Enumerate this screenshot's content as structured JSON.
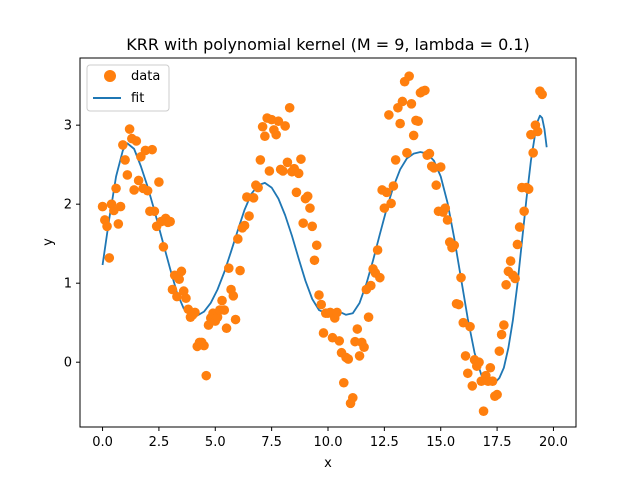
{
  "chart_data": {
    "type": "scatter",
    "title": "KRR with polynomial kernel (M = 9, lambda = 0.1)",
    "xlabel": "x",
    "ylabel": "y",
    "xlim": [
      -1.0,
      21.0
    ],
    "ylim": [
      -0.82,
      3.85
    ],
    "xticks": [
      0.0,
      2.5,
      5.0,
      7.5,
      10.0,
      12.5,
      15.0,
      17.5,
      20.0
    ],
    "xtick_labels": [
      "0.0",
      "2.5",
      "5.0",
      "7.5",
      "10.0",
      "12.5",
      "15.0",
      "17.5",
      "20.0"
    ],
    "yticks": [
      0,
      1,
      2,
      3
    ],
    "ytick_labels": [
      "0",
      "1",
      "2",
      "3"
    ],
    "grid": false,
    "legend": {
      "position": "top-left",
      "entries": [
        "data",
        "fit"
      ]
    },
    "colors": {
      "data": "#ff7f0e",
      "fit": "#1f77b4"
    },
    "series": [
      {
        "name": "data",
        "kind": "scatter",
        "points": [
          [
            0.0,
            1.97
          ],
          [
            0.1,
            1.8
          ],
          [
            0.2,
            1.72
          ],
          [
            0.3,
            1.32
          ],
          [
            0.4,
            2.0
          ],
          [
            0.5,
            1.92
          ],
          [
            0.6,
            2.2
          ],
          [
            0.7,
            1.75
          ],
          [
            0.8,
            1.97
          ],
          [
            0.9,
            2.75
          ],
          [
            1.0,
            2.56
          ],
          [
            1.1,
            2.37
          ],
          [
            1.2,
            2.95
          ],
          [
            1.3,
            2.83
          ],
          [
            1.4,
            2.18
          ],
          [
            1.5,
            2.8
          ],
          [
            1.6,
            2.3
          ],
          [
            1.7,
            2.6
          ],
          [
            1.8,
            2.2
          ],
          [
            1.9,
            2.68
          ],
          [
            2.0,
            2.17
          ],
          [
            2.1,
            1.91
          ],
          [
            2.2,
            2.69
          ],
          [
            2.3,
            1.91
          ],
          [
            2.4,
            1.72
          ],
          [
            2.5,
            2.28
          ],
          [
            2.6,
            1.78
          ],
          [
            2.7,
            1.46
          ],
          [
            2.8,
            1.82
          ],
          [
            2.9,
            1.77
          ],
          [
            3.0,
            1.78
          ],
          [
            3.1,
            0.92
          ],
          [
            3.2,
            1.1
          ],
          [
            3.3,
            0.83
          ],
          [
            3.4,
            1.05
          ],
          [
            3.5,
            1.15
          ],
          [
            3.6,
            0.9
          ],
          [
            3.7,
            0.81
          ],
          [
            3.8,
            0.67
          ],
          [
            3.9,
            0.57
          ],
          [
            4.0,
            0.6
          ],
          [
            4.1,
            0.63
          ],
          [
            4.2,
            0.2
          ],
          [
            4.3,
            0.25
          ],
          [
            4.4,
            0.25
          ],
          [
            4.5,
            0.21
          ],
          [
            4.6,
            -0.17
          ],
          [
            4.7,
            0.47
          ],
          [
            4.8,
            0.56
          ],
          [
            4.9,
            0.62
          ],
          [
            5.0,
            0.52
          ],
          [
            5.1,
            0.57
          ],
          [
            5.2,
            0.66
          ],
          [
            5.3,
            0.78
          ],
          [
            5.4,
            0.66
          ],
          [
            5.5,
            0.43
          ],
          [
            5.6,
            1.19
          ],
          [
            5.7,
            0.92
          ],
          [
            5.8,
            0.84
          ],
          [
            5.9,
            0.54
          ],
          [
            6.0,
            1.56
          ],
          [
            6.1,
            1.16
          ],
          [
            6.2,
            1.7
          ],
          [
            6.3,
            1.73
          ],
          [
            6.4,
            2.09
          ],
          [
            6.5,
            1.85
          ],
          [
            6.7,
            2.08
          ],
          [
            6.8,
            2.24
          ],
          [
            6.9,
            2.21
          ],
          [
            7.0,
            2.56
          ],
          [
            7.1,
            2.98
          ],
          [
            7.2,
            2.86
          ],
          [
            7.3,
            3.09
          ],
          [
            7.4,
            2.42
          ],
          [
            7.5,
            3.07
          ],
          [
            7.6,
            2.94
          ],
          [
            7.7,
            2.88
          ],
          [
            7.8,
            3.05
          ],
          [
            7.9,
            2.44
          ],
          [
            8.0,
            2.42
          ],
          [
            8.1,
            2.99
          ],
          [
            8.2,
            2.53
          ],
          [
            8.3,
            3.22
          ],
          [
            8.4,
            2.41
          ],
          [
            8.5,
            2.45
          ],
          [
            8.6,
            2.15
          ],
          [
            8.7,
            2.39
          ],
          [
            8.8,
            2.57
          ],
          [
            8.9,
            1.76
          ],
          [
            9.0,
            2.07
          ],
          [
            9.1,
            2.1
          ],
          [
            9.2,
            1.95
          ],
          [
            9.3,
            1.72
          ],
          [
            9.4,
            1.29
          ],
          [
            9.5,
            1.48
          ],
          [
            9.6,
            0.85
          ],
          [
            9.7,
            0.73
          ],
          [
            9.8,
            0.37
          ],
          [
            9.9,
            0.62
          ],
          [
            10.0,
            0.62
          ],
          [
            10.1,
            0.63
          ],
          [
            10.2,
            0.31
          ],
          [
            10.3,
            0.56
          ],
          [
            10.4,
            0.63
          ],
          [
            10.5,
            0.27
          ],
          [
            10.6,
            0.12
          ],
          [
            10.7,
            -0.26
          ],
          [
            10.8,
            0.06
          ],
          [
            10.9,
            0.04
          ],
          [
            11.0,
            -0.52
          ],
          [
            11.1,
            -0.45
          ],
          [
            11.2,
            0.26
          ],
          [
            11.3,
            0.42
          ],
          [
            11.4,
            0.08
          ],
          [
            11.5,
            0.25
          ],
          [
            11.6,
            0.19
          ],
          [
            11.7,
            0.92
          ],
          [
            11.8,
            0.57
          ],
          [
            11.9,
            0.97
          ],
          [
            12.0,
            1.18
          ],
          [
            12.1,
            1.13
          ],
          [
            12.2,
            1.42
          ],
          [
            12.3,
            1.07
          ],
          [
            12.4,
            2.18
          ],
          [
            12.5,
            1.95
          ],
          [
            12.6,
            2.15
          ],
          [
            12.7,
            3.13
          ],
          [
            12.8,
            2.01
          ],
          [
            12.9,
            2.23
          ],
          [
            13.0,
            2.56
          ],
          [
            13.1,
            3.22
          ],
          [
            13.2,
            3.02
          ],
          [
            13.3,
            3.3
          ],
          [
            13.4,
            3.55
          ],
          [
            13.5,
            2.65
          ],
          [
            13.6,
            3.62
          ],
          [
            13.7,
            3.27
          ],
          [
            13.8,
            2.87
          ],
          [
            13.9,
            3.06
          ],
          [
            14.0,
            3.05
          ],
          [
            14.1,
            3.41
          ],
          [
            14.2,
            3.43
          ],
          [
            14.3,
            3.44
          ],
          [
            14.4,
            2.62
          ],
          [
            14.5,
            2.64
          ],
          [
            14.6,
            2.48
          ],
          [
            14.7,
            2.46
          ],
          [
            14.8,
            2.24
          ],
          [
            14.9,
            1.91
          ],
          [
            15.0,
            2.47
          ],
          [
            15.1,
            1.9
          ],
          [
            15.2,
            1.95
          ],
          [
            15.3,
            1.8
          ],
          [
            15.4,
            1.52
          ],
          [
            15.5,
            1.45
          ],
          [
            15.6,
            1.48
          ],
          [
            15.7,
            0.74
          ],
          [
            15.8,
            0.73
          ],
          [
            15.9,
            1.07
          ],
          [
            16.0,
            0.5
          ],
          [
            16.1,
            0.08
          ],
          [
            16.2,
            -0.14
          ],
          [
            16.3,
            0.45
          ],
          [
            16.4,
            -0.3
          ],
          [
            16.5,
            0.03
          ],
          [
            16.6,
            -0.05
          ],
          [
            16.7,
            0.0
          ],
          [
            16.8,
            -0.24
          ],
          [
            16.9,
            -0.62
          ],
          [
            17.0,
            -0.17
          ],
          [
            17.1,
            -0.24
          ],
          [
            17.2,
            -0.07
          ],
          [
            17.3,
            -0.24
          ],
          [
            17.4,
            -0.43
          ],
          [
            17.5,
            -0.41
          ],
          [
            17.6,
            0.14
          ],
          [
            17.7,
            0.35
          ],
          [
            17.8,
            0.47
          ],
          [
            17.9,
            0.98
          ],
          [
            18.0,
            1.15
          ],
          [
            18.1,
            1.28
          ],
          [
            18.2,
            1.1
          ],
          [
            18.3,
            1.06
          ],
          [
            18.4,
            1.49
          ],
          [
            18.5,
            1.71
          ],
          [
            18.6,
            2.21
          ],
          [
            18.7,
            1.91
          ],
          [
            18.8,
            2.21
          ],
          [
            18.9,
            2.19
          ],
          [
            19.0,
            2.88
          ],
          [
            19.1,
            2.65
          ],
          [
            19.2,
            3.0
          ],
          [
            19.3,
            2.92
          ],
          [
            19.4,
            3.43
          ],
          [
            19.5,
            3.39
          ]
        ]
      },
      {
        "name": "fit",
        "kind": "line",
        "points": [
          [
            0.0,
            1.23
          ],
          [
            0.3,
            1.82
          ],
          [
            0.6,
            2.35
          ],
          [
            0.9,
            2.68
          ],
          [
            1.1,
            2.77
          ],
          [
            1.4,
            2.7
          ],
          [
            1.7,
            2.48
          ],
          [
            2.0,
            2.22
          ],
          [
            2.3,
            1.92
          ],
          [
            2.6,
            1.6
          ],
          [
            3.0,
            1.18
          ],
          [
            3.3,
            0.88
          ],
          [
            3.6,
            0.68
          ],
          [
            3.9,
            0.59
          ],
          [
            4.2,
            0.59
          ],
          [
            4.5,
            0.64
          ],
          [
            4.8,
            0.75
          ],
          [
            5.1,
            0.92
          ],
          [
            5.4,
            1.14
          ],
          [
            5.7,
            1.4
          ],
          [
            6.0,
            1.67
          ],
          [
            6.3,
            1.93
          ],
          [
            6.6,
            2.13
          ],
          [
            6.9,
            2.24
          ],
          [
            7.2,
            2.27
          ],
          [
            7.5,
            2.21
          ],
          [
            7.8,
            2.07
          ],
          [
            8.1,
            1.86
          ],
          [
            8.4,
            1.6
          ],
          [
            8.7,
            1.31
          ],
          [
            9.0,
            1.03
          ],
          [
            9.3,
            0.8
          ],
          [
            9.6,
            0.66
          ],
          [
            9.9,
            0.62
          ],
          [
            10.2,
            0.64
          ],
          [
            10.5,
            0.64
          ],
          [
            10.8,
            0.6
          ],
          [
            11.1,
            0.62
          ],
          [
            11.4,
            0.75
          ],
          [
            11.7,
            0.99
          ],
          [
            12.0,
            1.29
          ],
          [
            12.3,
            1.62
          ],
          [
            12.6,
            1.94
          ],
          [
            12.9,
            2.22
          ],
          [
            13.2,
            2.44
          ],
          [
            13.5,
            2.58
          ],
          [
            13.8,
            2.64
          ],
          [
            14.1,
            2.66
          ],
          [
            14.4,
            2.64
          ],
          [
            14.7,
            2.55
          ],
          [
            15.0,
            2.35
          ],
          [
            15.3,
            2.02
          ],
          [
            15.6,
            1.57
          ],
          [
            15.9,
            1.06
          ],
          [
            16.2,
            0.55
          ],
          [
            16.5,
            0.12
          ],
          [
            16.8,
            -0.16
          ],
          [
            17.1,
            -0.25
          ],
          [
            17.4,
            -0.26
          ],
          [
            17.6,
            -0.2
          ],
          [
            17.8,
            -0.07
          ],
          [
            18.0,
            0.18
          ],
          [
            18.2,
            0.53
          ],
          [
            18.4,
            0.98
          ],
          [
            18.6,
            1.52
          ],
          [
            18.8,
            2.06
          ],
          [
            19.0,
            2.55
          ],
          [
            19.2,
            2.91
          ],
          [
            19.3,
            3.05
          ],
          [
            19.4,
            3.12
          ],
          [
            19.5,
            3.09
          ],
          [
            19.6,
            2.95
          ],
          [
            19.7,
            2.72
          ]
        ]
      }
    ]
  }
}
